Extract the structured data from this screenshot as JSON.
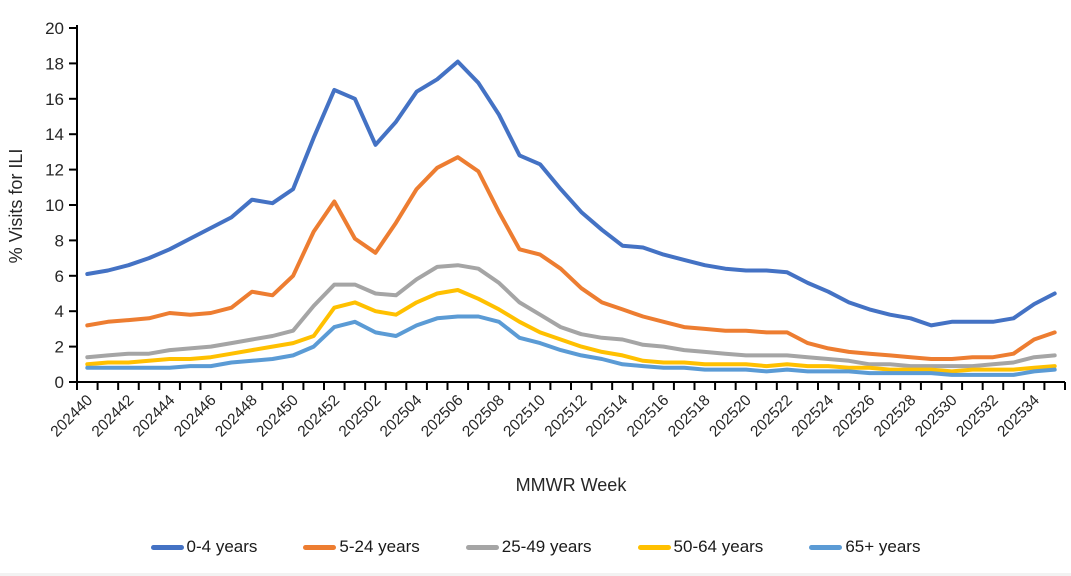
{
  "chart_data": {
    "type": "line",
    "title": "",
    "xlabel": "MMWR Week",
    "ylabel": "% Visits for ILI",
    "ylim": [
      0,
      20
    ],
    "y_tick_step": 2,
    "grid": false,
    "legend_position": "bottom",
    "x_label_every": 2,
    "x": [
      "202440",
      "202441",
      "202442",
      "202443",
      "202444",
      "202445",
      "202446",
      "202447",
      "202448",
      "202449",
      "202450",
      "202451",
      "202452",
      "202501",
      "202502",
      "202503",
      "202504",
      "202505",
      "202506",
      "202507",
      "202508",
      "202509",
      "202510",
      "202511",
      "202512",
      "202513",
      "202514",
      "202515",
      "202516",
      "202517",
      "202518",
      "202519",
      "202520",
      "202521",
      "202522",
      "202523",
      "202524",
      "202525",
      "202526",
      "202527",
      "202528",
      "202529",
      "202530",
      "202531",
      "202532",
      "202533",
      "202534",
      "202535"
    ],
    "series": [
      {
        "name": "0-4 years",
        "color": "#4472C4",
        "values": [
          6.1,
          6.3,
          6.6,
          7.0,
          7.5,
          8.1,
          8.7,
          9.3,
          10.3,
          10.1,
          10.9,
          13.8,
          16.5,
          16.0,
          13.4,
          14.7,
          16.4,
          17.1,
          18.1,
          16.9,
          15.1,
          12.8,
          12.3,
          10.9,
          9.6,
          8.6,
          7.7,
          7.6,
          7.2,
          6.9,
          6.6,
          6.4,
          6.3,
          6.3,
          6.2,
          5.6,
          5.1,
          4.5,
          4.1,
          3.8,
          3.6,
          3.2,
          3.4,
          3.4,
          3.4,
          3.6,
          4.4,
          5.0
        ]
      },
      {
        "name": "5-24 years",
        "color": "#ED7D31",
        "values": [
          3.2,
          3.4,
          3.5,
          3.6,
          3.9,
          3.8,
          3.9,
          4.2,
          5.1,
          4.9,
          6.0,
          8.5,
          10.2,
          8.1,
          7.3,
          9.0,
          10.9,
          12.1,
          12.7,
          11.9,
          9.6,
          7.5,
          7.2,
          6.4,
          5.3,
          4.5,
          4.1,
          3.7,
          3.4,
          3.1,
          3.0,
          2.9,
          2.9,
          2.8,
          2.8,
          2.2,
          1.9,
          1.7,
          1.6,
          1.5,
          1.4,
          1.3,
          1.3,
          1.4,
          1.4,
          1.6,
          2.4,
          2.8
        ]
      },
      {
        "name": "25-49 years",
        "color": "#A5A5A5",
        "values": [
          1.4,
          1.5,
          1.6,
          1.6,
          1.8,
          1.9,
          2.0,
          2.2,
          2.4,
          2.6,
          2.9,
          4.3,
          5.5,
          5.5,
          5.0,
          4.9,
          5.8,
          6.5,
          6.6,
          6.4,
          5.6,
          4.5,
          3.8,
          3.1,
          2.7,
          2.5,
          2.4,
          2.1,
          2.0,
          1.8,
          1.7,
          1.6,
          1.5,
          1.5,
          1.5,
          1.4,
          1.3,
          1.2,
          1.0,
          1.0,
          0.9,
          0.9,
          0.9,
          0.9,
          1.0,
          1.1,
          1.4,
          1.5
        ]
      },
      {
        "name": "50-64 years",
        "color": "#FFC000",
        "values": [
          1.0,
          1.1,
          1.1,
          1.2,
          1.3,
          1.3,
          1.4,
          1.6,
          1.8,
          2.0,
          2.2,
          2.6,
          4.2,
          4.5,
          4.0,
          3.8,
          4.5,
          5.0,
          5.2,
          4.7,
          4.1,
          3.4,
          2.8,
          2.4,
          2.0,
          1.7,
          1.5,
          1.2,
          1.1,
          1.1,
          1.0,
          1.0,
          1.0,
          0.9,
          1.0,
          0.9,
          0.9,
          0.8,
          0.8,
          0.7,
          0.7,
          0.7,
          0.6,
          0.7,
          0.7,
          0.7,
          0.8,
          0.9
        ]
      },
      {
        "name": "65+ years",
        "color": "#5B9BD5",
        "values": [
          0.8,
          0.8,
          0.8,
          0.8,
          0.8,
          0.9,
          0.9,
          1.1,
          1.2,
          1.3,
          1.5,
          2.0,
          3.1,
          3.4,
          2.8,
          2.6,
          3.2,
          3.6,
          3.7,
          3.7,
          3.4,
          2.5,
          2.2,
          1.8,
          1.5,
          1.3,
          1.0,
          0.9,
          0.8,
          0.8,
          0.7,
          0.7,
          0.7,
          0.6,
          0.7,
          0.6,
          0.6,
          0.6,
          0.5,
          0.5,
          0.5,
          0.5,
          0.4,
          0.4,
          0.4,
          0.4,
          0.6,
          0.7
        ]
      }
    ]
  }
}
